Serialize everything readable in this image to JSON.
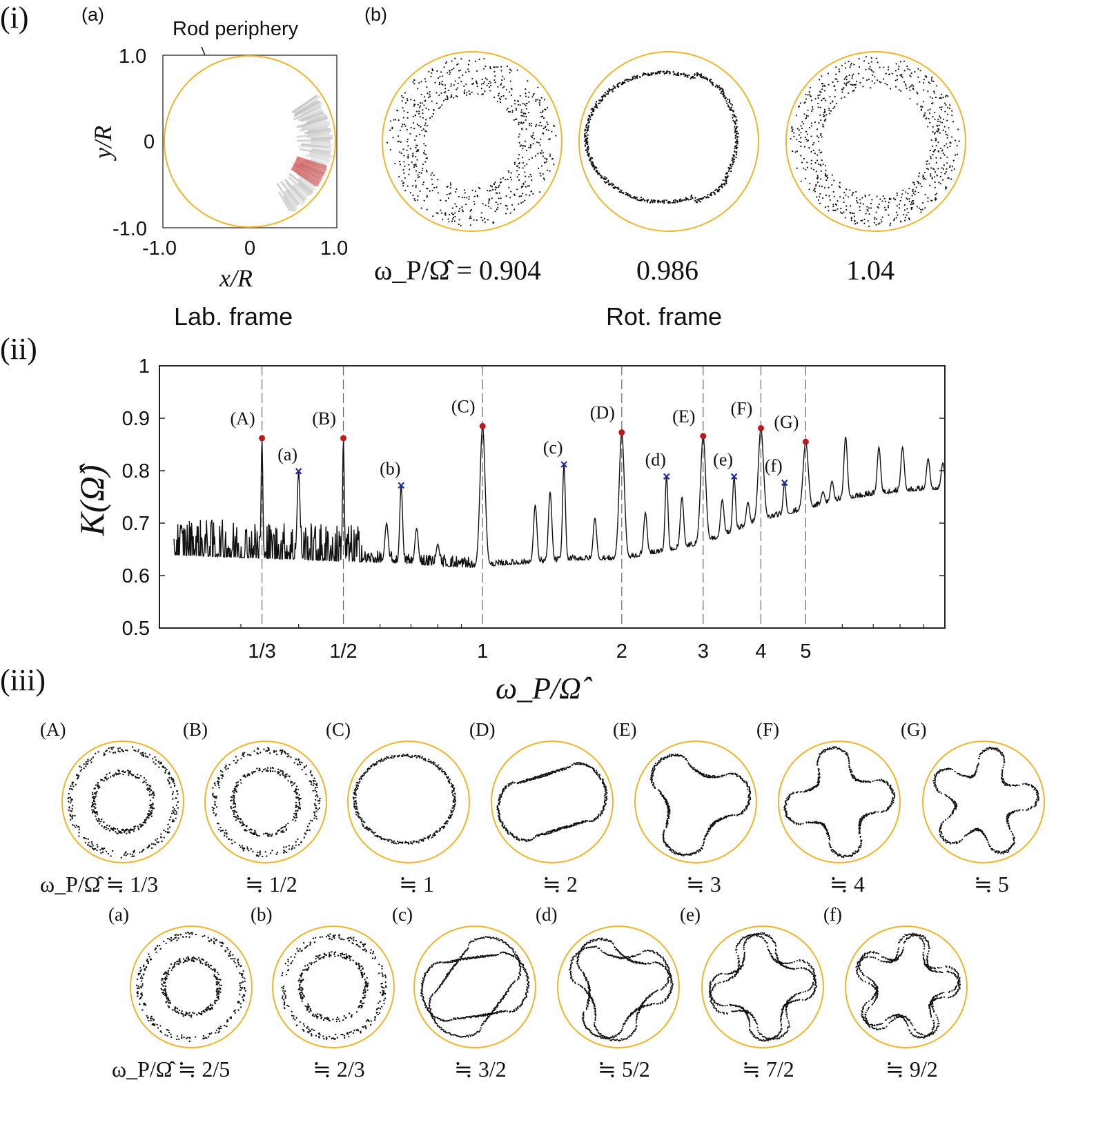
{
  "panel_i": {
    "label": "(i)",
    "sub_a": "(a)",
    "sub_b": "(b)",
    "rod_label": "Rod periphery",
    "y_ticks": [
      "1.0",
      "0",
      "-1.0"
    ],
    "x_ticks": [
      "-1.0",
      "0",
      "1.0"
    ],
    "ylabel": "y/R",
    "xlabel": "x/R",
    "lab_frame": "Lab. frame",
    "rot_frame": "Rot. frame",
    "omega_prefix": "ω_P/Ω̂ = 0.904",
    "omega_2": "0.986",
    "omega_3": "1.04",
    "circle_color": "#f0b429",
    "trace_red": "#d03a3a"
  },
  "panel_ii": {
    "label": "(ii)"
  },
  "panel_iii": {
    "label": "(iii)",
    "row1": [
      {
        "tag": "(A)",
        "ratio": "ω_P/Ω̂ ≒ 1/3"
      },
      {
        "tag": "(B)",
        "ratio": "≒ 1/2"
      },
      {
        "tag": "(C)",
        "ratio": "≒ 1"
      },
      {
        "tag": "(D)",
        "ratio": "≒ 2"
      },
      {
        "tag": "(E)",
        "ratio": "≒ 3"
      },
      {
        "tag": "(F)",
        "ratio": "≒ 4"
      },
      {
        "tag": "(G)",
        "ratio": "≒ 5"
      }
    ],
    "row2": [
      {
        "tag": "(a)",
        "ratio": "ω_P/Ω̂ ≒ 2/5"
      },
      {
        "tag": "(b)",
        "ratio": "≒ 2/3"
      },
      {
        "tag": "(c)",
        "ratio": "≒ 3/2"
      },
      {
        "tag": "(d)",
        "ratio": "≒ 5/2"
      },
      {
        "tag": "(e)",
        "ratio": "≒ 7/2"
      },
      {
        "tag": "(f)",
        "ratio": "≒ 9/2"
      }
    ]
  },
  "chart_data": {
    "type": "line",
    "ylabel": "K(Ω̂)",
    "xlabel": "ω_P/Ω̂",
    "x_scale": "log",
    "ylim": [
      0.5,
      1.0
    ],
    "y_ticks": [
      "0.5",
      "0.6",
      "0.7",
      "0.8",
      "0.9",
      "1"
    ],
    "x_ticks": [
      {
        "label": "1/3",
        "value": 0.3333
      },
      {
        "label": "1/2",
        "value": 0.5
      },
      {
        "label": "1",
        "value": 1
      },
      {
        "label": "2",
        "value": 2
      },
      {
        "label": "3",
        "value": 3
      },
      {
        "label": "4",
        "value": 4
      },
      {
        "label": "5",
        "value": 5
      }
    ],
    "xlim": [
      0.2,
      10
    ],
    "baseline": [
      [
        0.2,
        0.64
      ],
      [
        0.6,
        0.625
      ],
      [
        0.95,
        0.615
      ],
      [
        1.1,
        0.62
      ],
      [
        1.6,
        0.63
      ],
      [
        2.0,
        0.63
      ],
      [
        3.0,
        0.66
      ],
      [
        4.0,
        0.705
      ],
      [
        5.0,
        0.725
      ],
      [
        6.0,
        0.745
      ],
      [
        8.0,
        0.76
      ],
      [
        10.0,
        0.765
      ]
    ],
    "integer_resonances": [
      {
        "label": "(A)",
        "x": 0.3333,
        "y": 0.862
      },
      {
        "label": "(B)",
        "x": 0.5,
        "y": 0.862
      },
      {
        "label": "(C)",
        "x": 1.0,
        "y": 0.885
      },
      {
        "label": "(D)",
        "x": 2.0,
        "y": 0.873
      },
      {
        "label": "(E)",
        "x": 3.0,
        "y": 0.866
      },
      {
        "label": "(F)",
        "x": 4.0,
        "y": 0.881
      },
      {
        "label": "(G)",
        "x": 5.0,
        "y": 0.855
      }
    ],
    "half_resonances": [
      {
        "label": "(a)",
        "x": 0.4,
        "y": 0.799
      },
      {
        "label": "(b)",
        "x": 0.6667,
        "y": 0.772
      },
      {
        "label": "(c)",
        "x": 1.5,
        "y": 0.812
      },
      {
        "label": "(d)",
        "x": 2.5,
        "y": 0.789
      },
      {
        "label": "(e)",
        "x": 3.5,
        "y": 0.789
      },
      {
        "label": "(f)",
        "x": 4.5,
        "y": 0.777
      }
    ],
    "extra_peaks": [
      [
        6.1,
        0.865
      ],
      [
        7.2,
        0.845
      ],
      [
        8.1,
        0.845
      ],
      [
        9.2,
        0.823
      ],
      [
        9.9,
        0.815
      ],
      [
        5.45,
        0.76
      ],
      [
        5.7,
        0.78
      ],
      [
        1.3,
        0.735
      ],
      [
        1.4,
        0.76
      ],
      [
        1.75,
        0.71
      ],
      [
        2.25,
        0.72
      ],
      [
        2.7,
        0.75
      ],
      [
        3.3,
        0.745
      ],
      [
        3.75,
        0.74
      ],
      [
        0.62,
        0.7
      ],
      [
        0.72,
        0.69
      ],
      [
        0.8,
        0.66
      ]
    ],
    "marker_colors": {
      "integer": "#c01818",
      "half": "#1c2aa6"
    }
  }
}
